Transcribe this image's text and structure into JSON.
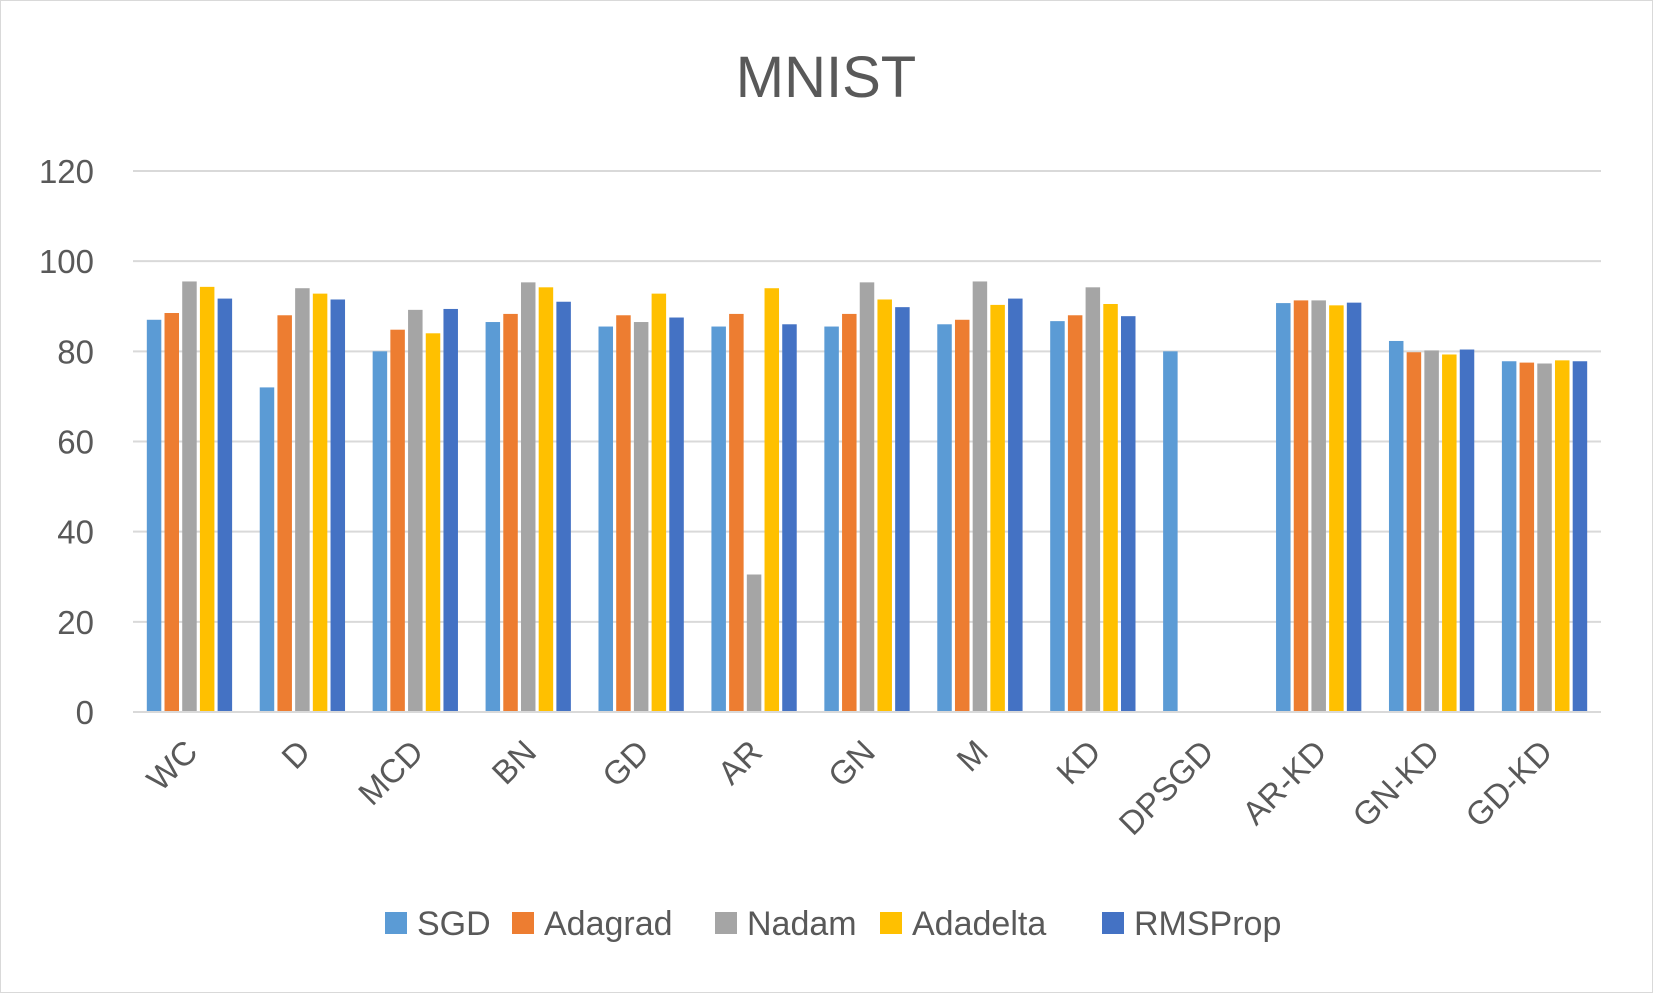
{
  "chart_data": {
    "type": "bar",
    "title": "MNIST",
    "xlabel": "",
    "ylabel": "",
    "ylim": [
      0,
      120
    ],
    "yticks": [
      0,
      20,
      40,
      60,
      80,
      100,
      120
    ],
    "grid": true,
    "legend_position": "bottom",
    "categories": [
      "WC",
      "D",
      "MCD",
      "BN",
      "GD",
      "AR",
      "GN",
      "M",
      "KD",
      "DPSGD",
      "AR-KD",
      "GN-KD",
      "GD-KD"
    ],
    "series": [
      {
        "name": "SGD",
        "color": "#5b9bd5",
        "values": [
          87,
          72,
          80,
          86.5,
          85.5,
          85.5,
          85.5,
          86,
          86.7,
          80,
          90.7,
          82.3,
          77.8
        ]
      },
      {
        "name": "Adagrad",
        "color": "#ed7d31",
        "values": [
          88.5,
          88,
          84.8,
          88.3,
          88,
          88.3,
          88.3,
          87,
          88,
          null,
          91.3,
          79.8,
          77.5
        ]
      },
      {
        "name": "Nadam",
        "color": "#a5a5a5",
        "values": [
          95.5,
          94,
          89.2,
          95.3,
          86.5,
          30.5,
          95.3,
          95.5,
          94.2,
          null,
          91.3,
          80.2,
          77.3
        ]
      },
      {
        "name": "Adadelta",
        "color": "#ffc000",
        "values": [
          94.3,
          92.8,
          84,
          94.2,
          92.8,
          94,
          91.5,
          90.3,
          90.5,
          null,
          90.2,
          79.3,
          78
        ]
      },
      {
        "name": "RMSProp",
        "color": "#4472c4",
        "values": [
          91.7,
          91.5,
          89.4,
          91,
          87.5,
          86,
          89.8,
          91.7,
          87.8,
          null,
          90.8,
          80.4,
          77.8
        ]
      }
    ]
  }
}
